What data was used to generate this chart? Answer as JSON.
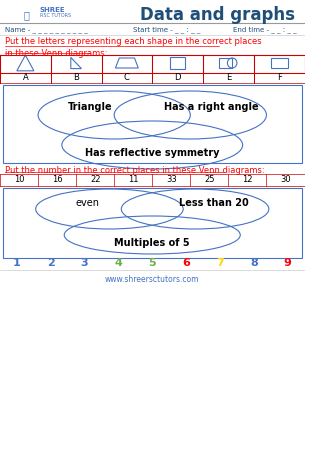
{
  "title": "Data and graphs",
  "logo_text": "SHREE\nRSC TUTORS",
  "name_line": "Name - _ _ _ _ _ _ _ _ _ _",
  "start_time": "Start time - _ _ : _ _",
  "end_time": "End time - _ _ : _ _",
  "instruction1": "Put the letters representing each shape in the correct places\nin these Venn diagrams:",
  "shape_labels": [
    "A",
    "B",
    "C",
    "D",
    "E",
    "F"
  ],
  "venn1_labels": [
    "Triangle",
    "Has a right angle",
    "Has reflective symmetry"
  ],
  "instruction2": "Put the number in the correct places in these Venn diagrams:",
  "numbers_row": [
    "10",
    "16",
    "22",
    "11",
    "33",
    "25",
    "12",
    "30"
  ],
  "venn2_labels": [
    "even",
    "Less than 20",
    "Multiples of 5"
  ],
  "bottom_numbers": [
    "1",
    "2",
    "3",
    "4",
    "5",
    "6",
    "7",
    "8",
    "9"
  ],
  "bottom_colors": [
    "#4472C4",
    "#4472C4",
    "#4472C4",
    "#70AD47",
    "#70AD47",
    "#FF0000",
    "#FFD700",
    "#4472C4",
    "#FF0000"
  ],
  "website": "www.shreersctutors.com",
  "bg_color": "#FFFFFF",
  "border_color": "#4472C4",
  "venn_color": "#4472C4",
  "red_color": "#FF0000",
  "title_color": "#1F4E79",
  "instruction_color": "#FF0000",
  "header_blue": "#1F4E79"
}
